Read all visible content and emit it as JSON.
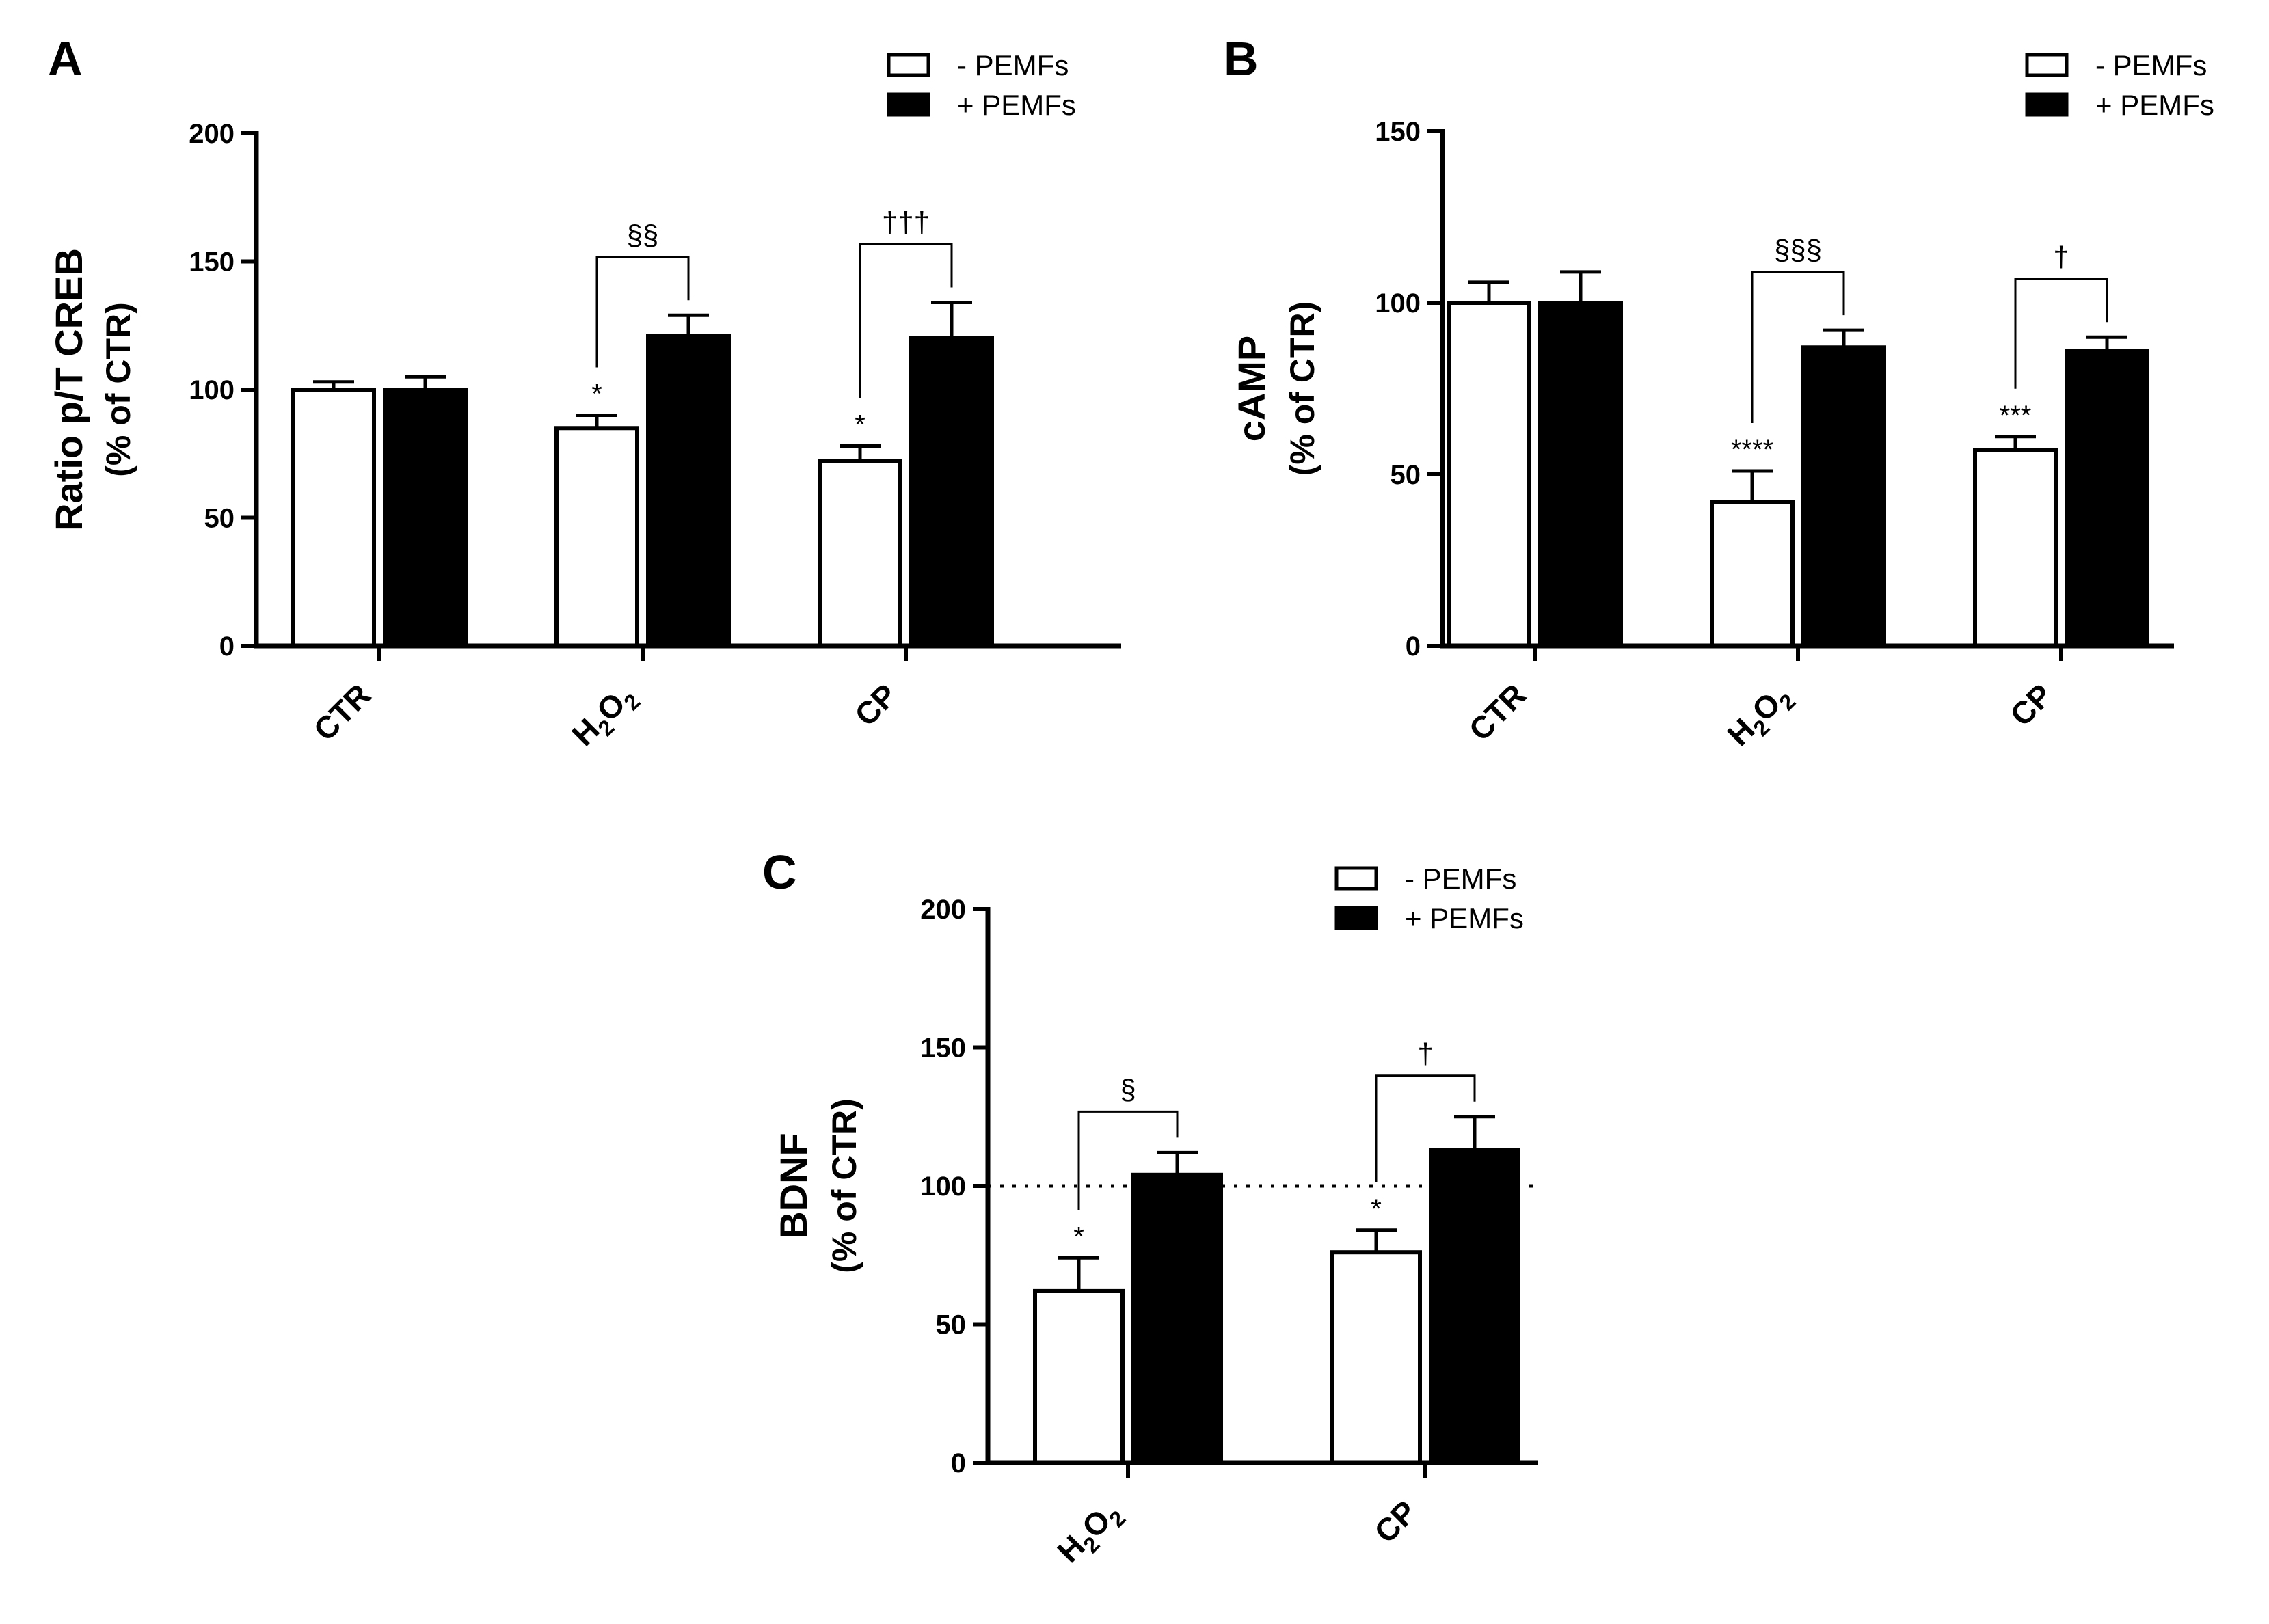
{
  "chart_data": [
    {
      "panel": "A",
      "type": "bar",
      "ylabel": "Ratio p/T CREB",
      "ylabel_sub": "(% of CTR)",
      "categories": [
        "CTR",
        "H2O2",
        "CP"
      ],
      "ylim": [
        0,
        200
      ],
      "yticks": [
        0,
        50,
        100,
        150,
        200
      ],
      "series": [
        {
          "name": "- PEMFs",
          "values": [
            100,
            85,
            72
          ],
          "errors": [
            3,
            5,
            6
          ],
          "annotations": [
            "",
            "*",
            "*"
          ]
        },
        {
          "name": "+ PEMFs",
          "values": [
            100,
            121,
            120
          ],
          "errors": [
            5,
            8,
            14
          ],
          "annotations": [
            "",
            "",
            ""
          ]
        }
      ],
      "comparisons": [
        {
          "category": 1,
          "label": "§§"
        },
        {
          "category": 2,
          "label": "†††"
        }
      ],
      "legend": [
        "- PEMFs",
        "+ PEMFs"
      ]
    },
    {
      "panel": "B",
      "type": "bar",
      "ylabel": "cAMP",
      "ylabel_sub": "(% of CTR)",
      "categories": [
        "CTR",
        "H2O2",
        "CP"
      ],
      "ylim": [
        0,
        150
      ],
      "yticks": [
        0,
        50,
        100,
        150
      ],
      "series": [
        {
          "name": "- PEMFs",
          "values": [
            100,
            42,
            57
          ],
          "errors": [
            6,
            9,
            4
          ],
          "annotations": [
            "",
            "****",
            "***"
          ]
        },
        {
          "name": "+ PEMFs",
          "values": [
            100,
            87,
            86
          ],
          "errors": [
            9,
            5,
            4
          ],
          "annotations": [
            "",
            "",
            ""
          ]
        }
      ],
      "comparisons": [
        {
          "category": 1,
          "label": "§§§"
        },
        {
          "category": 2,
          "label": "†"
        }
      ],
      "legend": [
        "- PEMFs",
        "+ PEMFs"
      ]
    },
    {
      "panel": "C",
      "type": "bar",
      "ylabel": "BDNF",
      "ylabel_sub": "(% of CTR)",
      "categories": [
        "H2O2",
        "CP"
      ],
      "ylim": [
        0,
        200
      ],
      "yticks": [
        0,
        50,
        100,
        150,
        200
      ],
      "reference_line": 100,
      "series": [
        {
          "name": "- PEMFs",
          "values": [
            62,
            76
          ],
          "errors": [
            12,
            8
          ],
          "annotations": [
            "*",
            "*"
          ]
        },
        {
          "name": "+ PEMFs",
          "values": [
            104,
            113
          ],
          "errors": [
            8,
            12
          ],
          "annotations": [
            "",
            ""
          ]
        }
      ],
      "comparisons": [
        {
          "category": 0,
          "label": "§"
        },
        {
          "category": 1,
          "label": "†"
        }
      ],
      "legend": [
        "- PEMFs",
        "+ PEMFs"
      ]
    }
  ],
  "colors": {
    "minus_fill": "#ffffff",
    "plus_fill": "#000000",
    "stroke": "#000000"
  }
}
